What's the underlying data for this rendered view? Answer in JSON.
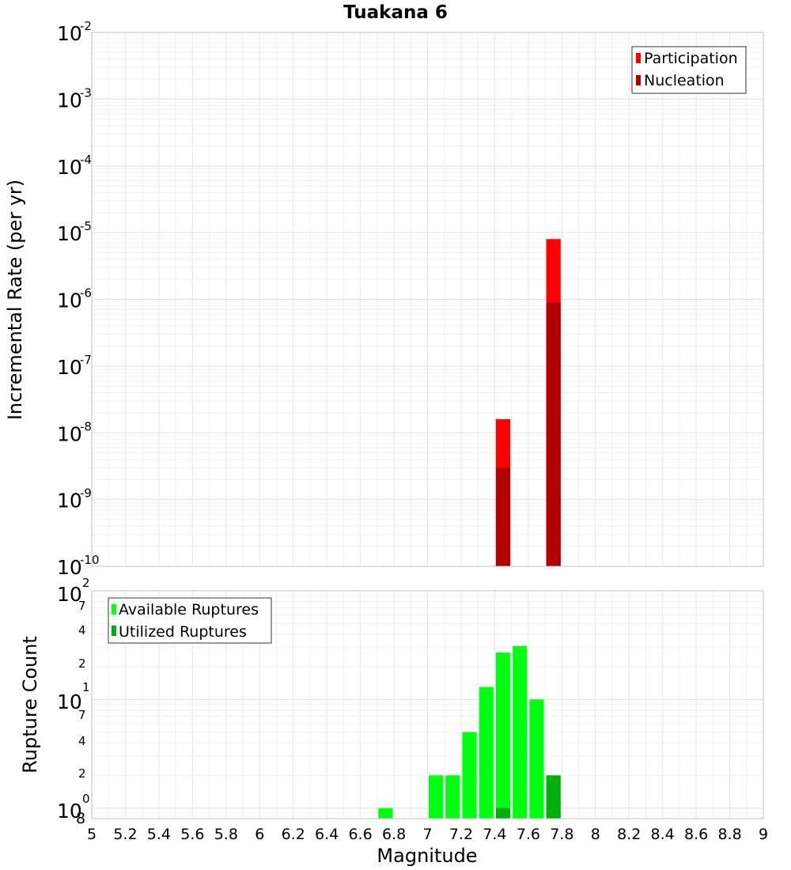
{
  "chart_data": {
    "type": "bar",
    "title": "Tuakana 6",
    "xlabel": "Magnitude",
    "x_ticks": [
      "5",
      "5.2",
      "5.4",
      "5.6",
      "5.8",
      "6",
      "6.2",
      "6.4",
      "6.6",
      "6.8",
      "7",
      "7.2",
      "7.4",
      "7.6",
      "7.8",
      "8",
      "8.2",
      "8.4",
      "8.6",
      "8.8",
      "9"
    ],
    "xlim": [
      5,
      9
    ],
    "bin_width": 0.1,
    "panels": [
      {
        "ylabel": "Incremental Rate (per yr)",
        "yscale": "log",
        "ylim": [
          1e-10,
          0.01
        ],
        "y_ticks": [
          {
            "base": "10",
            "exp": "-10"
          },
          {
            "base": "10",
            "exp": "-9"
          },
          {
            "base": "10",
            "exp": "-8"
          },
          {
            "base": "10",
            "exp": "-7"
          },
          {
            "base": "10",
            "exp": "-6"
          },
          {
            "base": "10",
            "exp": "-5"
          },
          {
            "base": "10",
            "exp": "-4"
          },
          {
            "base": "10",
            "exp": "-3"
          },
          {
            "base": "10",
            "exp": "-2"
          }
        ],
        "legend_position": "top-right",
        "series": [
          {
            "name": "Participation",
            "color": "#ff0000",
            "x": [
              7.45,
              7.75
            ],
            "values": [
              1.6e-08,
              8e-06
            ]
          },
          {
            "name": "Nucleation",
            "color": "#b00000",
            "x": [
              7.45,
              7.75
            ],
            "values": [
              3e-09,
              9e-07
            ]
          }
        ]
      },
      {
        "ylabel": "Rupture Count",
        "yscale": "log",
        "ylim": [
          0.8,
          100
        ],
        "y_ticks": [
          {
            "base": "10",
            "exp": "0"
          },
          {
            "base": "",
            "exp": "8"
          },
          {
            "base": "",
            "exp": "2"
          },
          {
            "base": "",
            "exp": "4"
          },
          {
            "base": "",
            "exp": "7"
          },
          {
            "base": "10",
            "exp": "1"
          },
          {
            "base": "",
            "exp": "2"
          },
          {
            "base": "",
            "exp": "4"
          },
          {
            "base": "",
            "exp": "7"
          },
          {
            "base": "10",
            "exp": "2"
          }
        ],
        "legend_position": "top-left",
        "series": [
          {
            "name": "Available Ruptures",
            "color": "#00ff11",
            "x": [
              6.75,
              7.05,
              7.15,
              7.25,
              7.35,
              7.45,
              7.55,
              7.65
            ],
            "values": [
              1,
              2,
              2,
              5,
              13,
              27,
              31,
              10
            ]
          },
          {
            "name": "Utilized Ruptures",
            "color": "#00b00a",
            "x": [
              7.45,
              7.75
            ],
            "values": [
              1,
              2
            ]
          }
        ]
      }
    ]
  }
}
